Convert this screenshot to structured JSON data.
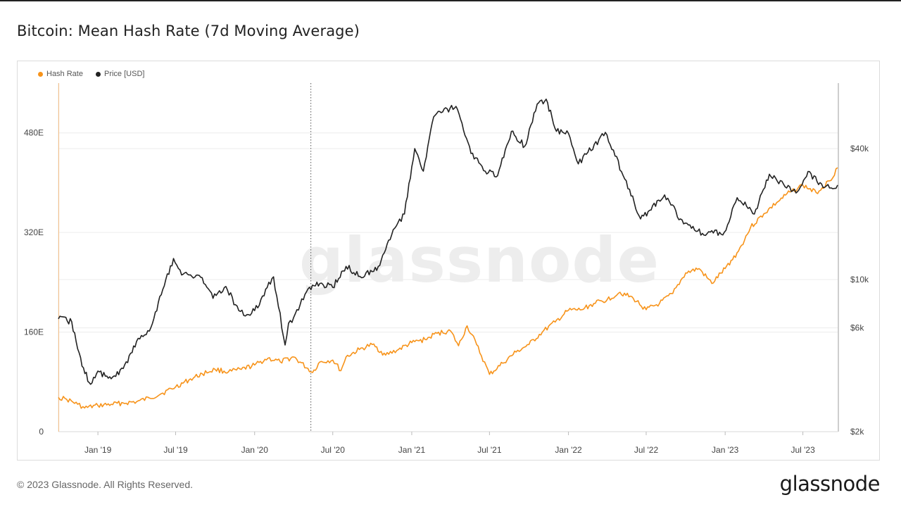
{
  "header": {
    "title": "Bitcoin: Mean Hash Rate (7d Moving Average)"
  },
  "footer": {
    "copyright": "© 2023 Glassnode. All Rights Reserved.",
    "logo_text": "glassnode"
  },
  "watermark": "glassnode",
  "colors": {
    "hash_rate": "#f7931a",
    "price": "#222222",
    "grid": "#ececec"
  },
  "chart_data": {
    "type": "line",
    "title": "Bitcoin: Mean Hash Rate (7d Moving Average)",
    "legend_position": "top-left",
    "grid": true,
    "x_range": [
      "2018-10-01",
      "2023-09-20"
    ],
    "x_ticks": [
      {
        "date": "2019-01-01",
        "label": "Jan '19"
      },
      {
        "date": "2019-07-01",
        "label": "Jul '19"
      },
      {
        "date": "2020-01-01",
        "label": "Jan '20"
      },
      {
        "date": "2020-07-01",
        "label": "Jul '20"
      },
      {
        "date": "2021-01-01",
        "label": "Jan '21"
      },
      {
        "date": "2021-07-01",
        "label": "Jul '21"
      },
      {
        "date": "2022-01-01",
        "label": "Jan '22"
      },
      {
        "date": "2022-07-01",
        "label": "Jul '22"
      },
      {
        "date": "2023-01-01",
        "label": "Jan '23"
      },
      {
        "date": "2023-07-01",
        "label": "Jul '23"
      }
    ],
    "vertical_marker_date": "2020-05-11",
    "left_axis": {
      "scale": "linear",
      "range": [
        0,
        560
      ],
      "ticks": [
        {
          "v": 0,
          "label": "0"
        },
        {
          "v": 160,
          "label": "160E"
        },
        {
          "v": 320,
          "label": "320E"
        },
        {
          "v": 480,
          "label": "480E"
        }
      ]
    },
    "right_axis": {
      "scale": "log",
      "range": [
        2000,
        80000
      ],
      "ticks": [
        {
          "v": 2000,
          "label": "$2k"
        },
        {
          "v": 6000,
          "label": "$6k"
        },
        {
          "v": 10000,
          "label": "$10k"
        },
        {
          "v": 40000,
          "label": "$40k"
        }
      ]
    },
    "series": [
      {
        "name": "Hash Rate",
        "axis": "left",
        "color": "#f7931a",
        "points": [
          [
            "2018-10-01",
            55
          ],
          [
            "2018-10-20",
            52
          ],
          [
            "2018-11-15",
            44
          ],
          [
            "2018-12-01",
            38
          ],
          [
            "2019-01-01",
            42
          ],
          [
            "2019-02-01",
            44
          ],
          [
            "2019-03-01",
            46
          ],
          [
            "2019-04-01",
            48
          ],
          [
            "2019-05-01",
            54
          ],
          [
            "2019-06-01",
            62
          ],
          [
            "2019-07-01",
            72
          ],
          [
            "2019-08-01",
            83
          ],
          [
            "2019-09-01",
            93
          ],
          [
            "2019-10-01",
            100
          ],
          [
            "2019-11-01",
            96
          ],
          [
            "2019-12-01",
            100
          ],
          [
            "2020-01-01",
            107
          ],
          [
            "2020-02-01",
            118
          ],
          [
            "2020-03-01",
            112
          ],
          [
            "2020-04-01",
            120
          ],
          [
            "2020-05-15",
            95
          ],
          [
            "2020-06-01",
            112
          ],
          [
            "2020-07-01",
            115
          ],
          [
            "2020-07-20",
            98
          ],
          [
            "2020-08-01",
            120
          ],
          [
            "2020-09-01",
            132
          ],
          [
            "2020-10-01",
            140
          ],
          [
            "2020-11-01",
            123
          ],
          [
            "2020-12-01",
            132
          ],
          [
            "2021-01-01",
            143
          ],
          [
            "2021-02-01",
            148
          ],
          [
            "2021-03-01",
            158
          ],
          [
            "2021-04-01",
            162
          ],
          [
            "2021-04-20",
            138
          ],
          [
            "2021-05-10",
            170
          ],
          [
            "2021-06-01",
            140
          ],
          [
            "2021-07-01",
            92
          ],
          [
            "2021-08-01",
            110
          ],
          [
            "2021-09-01",
            128
          ],
          [
            "2021-10-01",
            140
          ],
          [
            "2021-11-01",
            160
          ],
          [
            "2021-12-01",
            176
          ],
          [
            "2022-01-01",
            195
          ],
          [
            "2022-02-01",
            196
          ],
          [
            "2022-03-01",
            206
          ],
          [
            "2022-04-01",
            212
          ],
          [
            "2022-05-01",
            224
          ],
          [
            "2022-06-01",
            214
          ],
          [
            "2022-07-01",
            196
          ],
          [
            "2022-08-01",
            206
          ],
          [
            "2022-09-01",
            222
          ],
          [
            "2022-10-01",
            255
          ],
          [
            "2022-11-01",
            262
          ],
          [
            "2022-12-01",
            238
          ],
          [
            "2023-01-01",
            262
          ],
          [
            "2023-02-01",
            290
          ],
          [
            "2023-03-01",
            328
          ],
          [
            "2023-04-01",
            350
          ],
          [
            "2023-05-01",
            368
          ],
          [
            "2023-06-01",
            385
          ],
          [
            "2023-07-01",
            396
          ],
          [
            "2023-08-01",
            384
          ],
          [
            "2023-09-01",
            403
          ],
          [
            "2023-09-20",
            424
          ]
        ]
      },
      {
        "name": "Price [USD]",
        "axis": "right",
        "color": "#222222",
        "points": [
          [
            "2018-10-01",
            6600
          ],
          [
            "2018-11-01",
            6400
          ],
          [
            "2018-11-25",
            4000
          ],
          [
            "2018-12-15",
            3300
          ],
          [
            "2019-01-01",
            3800
          ],
          [
            "2019-02-01",
            3500
          ],
          [
            "2019-03-01",
            3900
          ],
          [
            "2019-04-01",
            5200
          ],
          [
            "2019-05-01",
            5800
          ],
          [
            "2019-06-01",
            9000
          ],
          [
            "2019-06-26",
            12500
          ],
          [
            "2019-07-15",
            10500
          ],
          [
            "2019-08-01",
            10500
          ],
          [
            "2019-09-01",
            10200
          ],
          [
            "2019-09-26",
            8200
          ],
          [
            "2019-10-26",
            9300
          ],
          [
            "2019-11-25",
            7200
          ],
          [
            "2019-12-18",
            6900
          ],
          [
            "2020-01-01",
            7200
          ],
          [
            "2020-02-14",
            10300
          ],
          [
            "2020-03-12",
            5000
          ],
          [
            "2020-03-20",
            6300
          ],
          [
            "2020-04-01",
            6700
          ],
          [
            "2020-05-01",
            8800
          ],
          [
            "2020-06-01",
            9600
          ],
          [
            "2020-07-01",
            9200
          ],
          [
            "2020-08-01",
            11500
          ],
          [
            "2020-09-06",
            10200
          ],
          [
            "2020-10-15",
            11500
          ],
          [
            "2020-11-15",
            16000
          ],
          [
            "2020-12-15",
            20000
          ],
          [
            "2021-01-08",
            40000
          ],
          [
            "2021-01-28",
            31500
          ],
          [
            "2021-02-21",
            56000
          ],
          [
            "2021-03-14",
            59000
          ],
          [
            "2021-04-14",
            62500
          ],
          [
            "2021-05-19",
            38000
          ],
          [
            "2021-06-21",
            31500
          ],
          [
            "2021-07-20",
            30000
          ],
          [
            "2021-08-21",
            48000
          ],
          [
            "2021-09-21",
            41000
          ],
          [
            "2021-10-20",
            64000
          ],
          [
            "2021-11-10",
            67500
          ],
          [
            "2021-12-04",
            48000
          ],
          [
            "2022-01-01",
            47000
          ],
          [
            "2022-01-24",
            34000
          ],
          [
            "2022-03-28",
            47500
          ],
          [
            "2022-05-12",
            29000
          ],
          [
            "2022-06-18",
            19000
          ],
          [
            "2022-08-13",
            24500
          ],
          [
            "2022-09-19",
            19000
          ],
          [
            "2022-11-09",
            16300
          ],
          [
            "2022-12-30",
            16500
          ],
          [
            "2023-01-29",
            23800
          ],
          [
            "2023-03-10",
            20000
          ],
          [
            "2023-04-14",
            30500
          ],
          [
            "2023-06-15",
            25000
          ],
          [
            "2023-07-13",
            31400
          ],
          [
            "2023-08-17",
            26500
          ],
          [
            "2023-09-20",
            27200
          ]
        ]
      }
    ]
  }
}
